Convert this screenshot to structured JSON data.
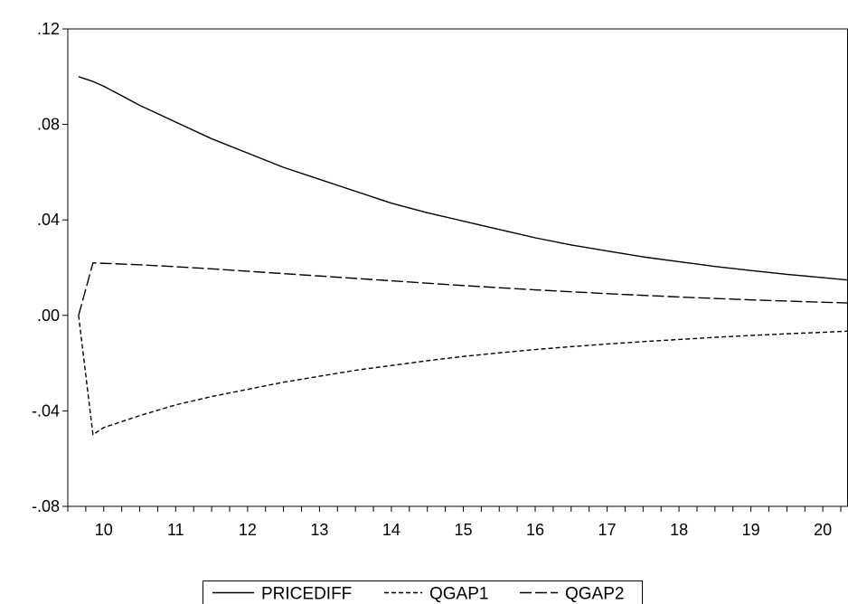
{
  "chart_data": {
    "type": "line",
    "title": "",
    "xlabel": "",
    "ylabel": "",
    "x": [
      9.65,
      9.85,
      10,
      10.5,
      11,
      11.5,
      12,
      12.5,
      13,
      13.5,
      14,
      14.5,
      15,
      15.5,
      16,
      16.5,
      17,
      17.5,
      18,
      18.5,
      19,
      19.5,
      20,
      20.35
    ],
    "series": [
      {
        "name": "PRICEDIFF",
        "style": "solid",
        "values": [
          0.1,
          0.098,
          0.096,
          0.088,
          0.081,
          0.074,
          0.068,
          0.062,
          0.057,
          0.052,
          0.047,
          0.043,
          0.0395,
          0.036,
          0.0325,
          0.0295,
          0.027,
          0.0245,
          0.0225,
          0.0205,
          0.0188,
          0.0172,
          0.0158,
          0.0148
        ]
      },
      {
        "name": "QGAP1",
        "style": "short-dash",
        "values": [
          0.0,
          -0.05,
          -0.047,
          -0.042,
          -0.0375,
          -0.034,
          -0.031,
          -0.028,
          -0.0255,
          -0.023,
          -0.021,
          -0.019,
          -0.0172,
          -0.0157,
          -0.0143,
          -0.0131,
          -0.012,
          -0.011,
          -0.0101,
          -0.0092,
          -0.0084,
          -0.0077,
          -0.0071,
          -0.0066
        ]
      },
      {
        "name": "QGAP2",
        "style": "long-dash",
        "values": [
          0.0,
          0.022,
          0.0218,
          0.0212,
          0.0204,
          0.0195,
          0.0185,
          0.0175,
          0.0165,
          0.0155,
          0.0145,
          0.0135,
          0.0125,
          0.0116,
          0.0107,
          0.0099,
          0.0091,
          0.0084,
          0.0077,
          0.0071,
          0.0065,
          0.006,
          0.0055,
          0.0052
        ]
      }
    ],
    "xlim": [
      9.5,
      20.35
    ],
    "ylim": [
      -0.08,
      0.12
    ],
    "x_ticks": [
      10,
      11,
      12,
      13,
      14,
      15,
      16,
      17,
      18,
      19,
      20
    ],
    "x_tick_labels": [
      "10",
      "11",
      "12",
      "13",
      "14",
      "15",
      "16",
      "17",
      "18",
      "19",
      "20"
    ],
    "y_ticks": [
      -0.08,
      -0.04,
      0.0,
      0.04,
      0.08,
      0.12
    ],
    "y_tick_labels": [
      "-.08",
      "-.04",
      ".00",
      ".04",
      ".08",
      ".12"
    ],
    "grid": false,
    "legend_position": "bottom-center",
    "colors": {
      "line": "#000000",
      "axis": "#000000",
      "background": "#ffffff"
    }
  }
}
